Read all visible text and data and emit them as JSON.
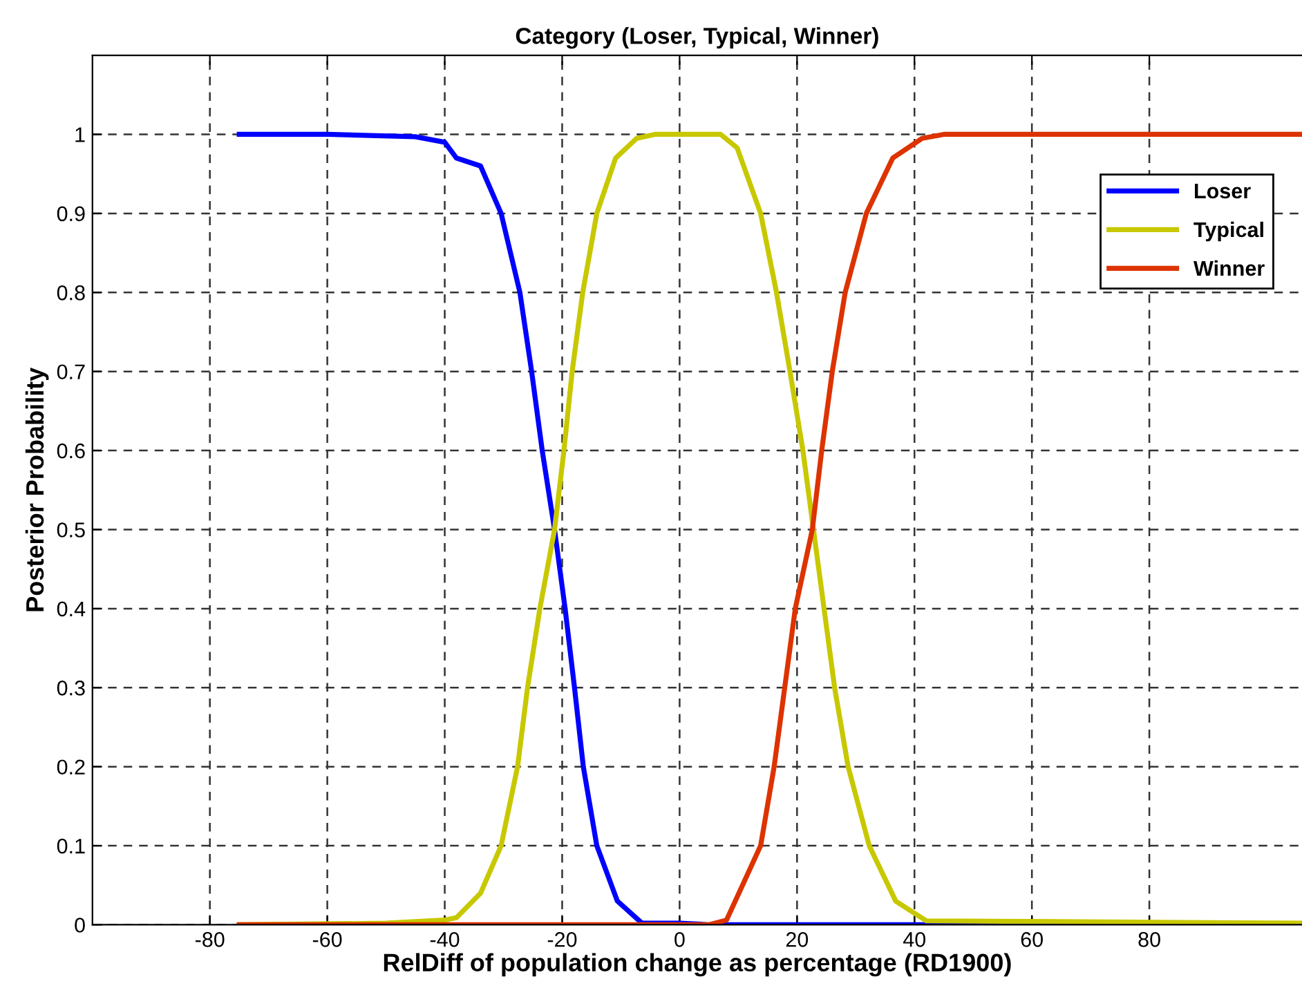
{
  "chart_data": {
    "type": "line",
    "title": "Category (Loser, Typical, Winner)",
    "xlabel": "RelDiff of population change as percentage (RD1900)",
    "ylabel": "Posterior Probability",
    "xlim": [
      -100,
      106
    ],
    "xticks": [
      -80,
      -60,
      -40,
      -20,
      0,
      20,
      40,
      60,
      80
    ],
    "ylim": [
      0,
      1.1
    ],
    "yticks": [
      0,
      0.1,
      0.2,
      0.3,
      0.4,
      0.5,
      0.6,
      0.7,
      0.8,
      0.9,
      1
    ],
    "grid": true,
    "legend": "right",
    "line_style": "solid",
    "marker": "none",
    "series": [
      {
        "name": "Loser",
        "color": "#0000ff",
        "x": [
          -75,
          -60,
          -45,
          -40,
          -38,
          -33.9,
          -30.4,
          -27.2,
          -25.2,
          -23.4,
          -21.3,
          -19.5,
          -17.9,
          -16.4,
          -14.1,
          -10.6,
          -6.4,
          0,
          3,
          5,
          106
        ],
        "values": [
          1,
          1,
          0.997,
          0.99,
          0.97,
          0.96,
          0.9,
          0.8,
          0.7,
          0.6,
          0.5,
          0.4,
          0.3,
          0.2,
          0.1,
          0.03,
          0.002,
          0.002,
          0.001,
          0,
          0
        ]
      },
      {
        "name": "Typical",
        "color": "#c8c800",
        "x": [
          -75,
          -50,
          -40,
          -38,
          -33.9,
          -30.4,
          -27.6,
          -25.9,
          -23.8,
          -21.3,
          -19.7,
          -18.3,
          -16.5,
          -14.1,
          -10.9,
          -7.3,
          -4.2,
          7,
          9.8,
          13.8,
          16.5,
          18.8,
          21,
          22.8,
          24.6,
          26.4,
          28.7,
          32.3,
          36.8,
          42,
          106
        ],
        "values": [
          0,
          0.002,
          0.006,
          0.009,
          0.04,
          0.1,
          0.2,
          0.3,
          0.4,
          0.5,
          0.6,
          0.7,
          0.8,
          0.9,
          0.97,
          0.995,
          1,
          1,
          0.983,
          0.9,
          0.8,
          0.7,
          0.6,
          0.5,
          0.4,
          0.3,
          0.2,
          0.1,
          0.03,
          0.005,
          0.002
        ]
      },
      {
        "name": "Winner",
        "color": "#dd3300",
        "x": [
          -75,
          0,
          5,
          8,
          13.8,
          16.1,
          17.9,
          19.7,
          22.6,
          24.2,
          26,
          28.2,
          31.8,
          36.3,
          41.3,
          45,
          106
        ],
        "values": [
          0,
          0,
          0,
          0.006,
          0.1,
          0.2,
          0.3,
          0.4,
          0.5,
          0.6,
          0.7,
          0.8,
          0.9,
          0.97,
          0.995,
          1,
          1
        ]
      }
    ]
  }
}
